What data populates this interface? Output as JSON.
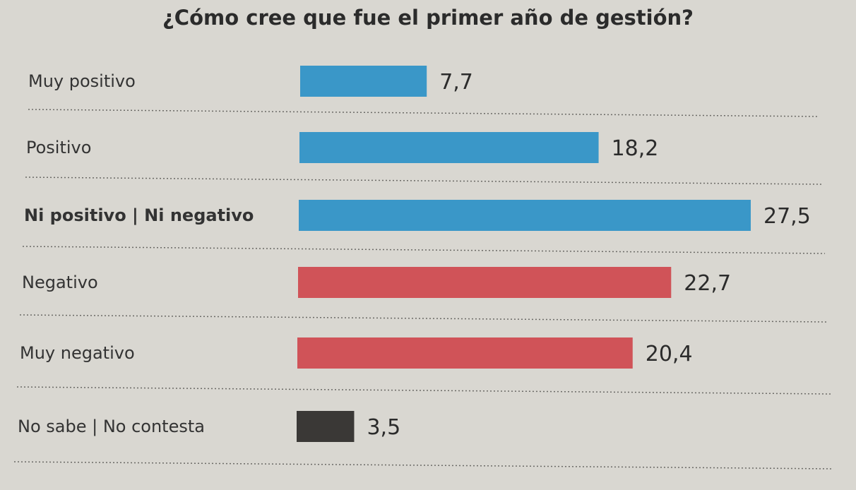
{
  "chart_data": {
    "type": "bar",
    "orientation": "horizontal",
    "title": "¿Cómo cree que fue el primer año de gestión?",
    "categories": [
      "Muy positivo",
      "Positivo",
      "Ni positivo | Ni negativo",
      "Negativo",
      "Muy negativo",
      "No sabe | No contesta"
    ],
    "values": [
      7.7,
      18.2,
      27.5,
      22.7,
      20.4,
      3.5
    ],
    "value_labels": [
      "7,7",
      "18,2",
      "27,5",
      "22,7",
      "20,4",
      "3,5"
    ],
    "colors": [
      "#3a97c8",
      "#3a97c8",
      "#3a97c8",
      "#d05358",
      "#d05358",
      "#3a3836"
    ],
    "bold_category_index": 2,
    "grid": false,
    "separators": "dotted",
    "xlim": [
      0,
      27.5
    ]
  }
}
